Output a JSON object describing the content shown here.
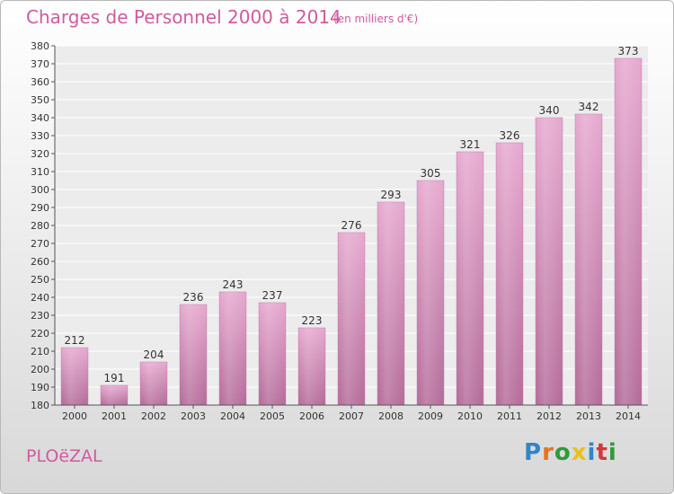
{
  "title": "Charges de Personnel 2000 à 2014",
  "subtitle": "(en milliers d'€)",
  "town": "PLOëZAL",
  "logo": {
    "text": "Proxiti",
    "colors": [
      "#2f86c8",
      "#e8731c",
      "#2f9b3a",
      "#e8c21c",
      "#2f86c8",
      "#d03a3a",
      "#2f9b3a"
    ]
  },
  "chart_data": {
    "type": "bar",
    "title": "Charges de Personnel 2000 à 2014",
    "subtitle": "(en milliers d'€)",
    "xlabel": "",
    "ylabel": "",
    "categories": [
      "2000",
      "2001",
      "2002",
      "2003",
      "2004",
      "2005",
      "2006",
      "2007",
      "2008",
      "2009",
      "2010",
      "2011",
      "2012",
      "2013",
      "2014"
    ],
    "values": [
      212,
      191,
      204,
      236,
      243,
      237,
      223,
      276,
      293,
      305,
      321,
      326,
      340,
      342,
      373
    ],
    "ylim": [
      180,
      380
    ],
    "ytick_step": 10,
    "grid": true,
    "bar_color": "#d890bc"
  }
}
